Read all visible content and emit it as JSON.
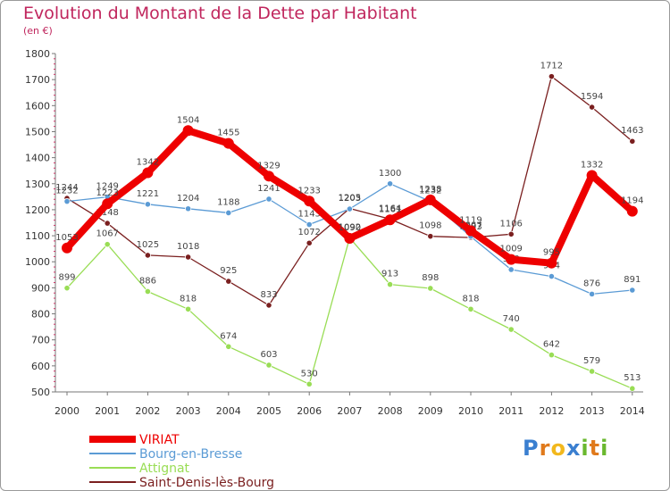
{
  "chart_data": {
    "type": "line",
    "title": "Evolution du Montant de la Dette par Habitant",
    "unit_label": "(en €)",
    "categories": [
      "2000",
      "2001",
      "2002",
      "2003",
      "2004",
      "2005",
      "2006",
      "2007",
      "2008",
      "2009",
      "2010",
      "2011",
      "2012",
      "2013",
      "2014"
    ],
    "ylim": [
      500,
      1800
    ],
    "yticks": [
      500,
      600,
      700,
      800,
      900,
      1000,
      1100,
      1200,
      1300,
      1400,
      1500,
      1600,
      1700,
      1800
    ],
    "grid": false,
    "legend_position": "bottom-left",
    "series": [
      {
        "name": "Saint-Denis-lès-Bourg",
        "color": "#7a1f1f",
        "values": [
          1244,
          1148,
          1025,
          1018,
          925,
          833,
          1072,
          1205,
          1164,
          1098,
          1093,
          1106,
          1712,
          1594,
          1463
        ]
      },
      {
        "name": "Attignat",
        "color": "#99dd55",
        "values": [
          899,
          1067,
          886,
          818,
          674,
          603,
          530,
          1092,
          913,
          898,
          818,
          740,
          642,
          579,
          513
        ]
      },
      {
        "name": "Bourg-en-Bresse",
        "color": "#5b9bd5",
        "values": [
          1232,
          1249,
          1221,
          1204,
          1188,
          1241,
          1143,
          1203,
          1300,
          1232,
          1097,
          970,
          944,
          876,
          891
        ]
      },
      {
        "name": "VIRIAT",
        "color": "#ee0000",
        "values": [
          1053,
          1223,
          1342,
          1504,
          1455,
          1329,
          1233,
          1090,
          1161,
          1238,
          1119,
          1009,
          995,
          1332,
          1194
        ]
      }
    ],
    "legend_order": [
      "VIRIAT",
      "Bourg-en-Bresse",
      "Attignat",
      "Saint-Denis-lès-Bourg"
    ]
  },
  "logo": {
    "letters": [
      "P",
      "r",
      "o",
      "x",
      "i",
      "t",
      "i"
    ],
    "colors": [
      "#3a7fd0",
      "#e07a1c",
      "#f2b81d",
      "#3a7fd0",
      "#6ab82e",
      "#e07a1c",
      "#6ab82e"
    ]
  }
}
